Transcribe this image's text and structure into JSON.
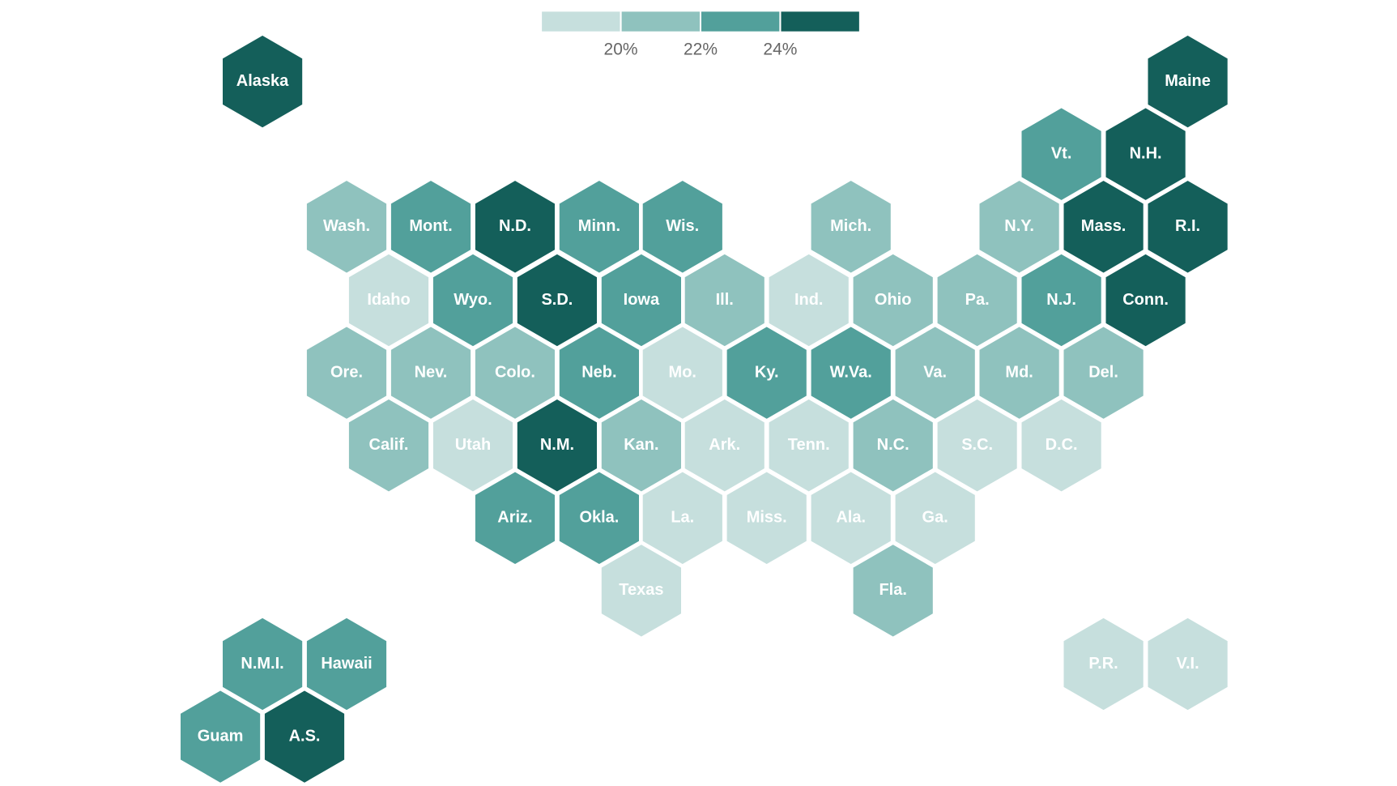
{
  "chart_data": {
    "type": "hexmap",
    "legend": {
      "colors": [
        "#c6dfdd",
        "#8fc2be",
        "#52a09b",
        "#145f5a"
      ],
      "ticks": [
        {
          "value": 20,
          "label": "20%"
        },
        {
          "value": 22,
          "label": "22%"
        },
        {
          "value": 24,
          "label": "24%"
        }
      ]
    },
    "states": [
      {
        "label": "Alaska",
        "color": "#145f5a"
      },
      {
        "label": "Maine",
        "color": "#145f5a"
      },
      {
        "label": "Vt.",
        "color": "#52a09b"
      },
      {
        "label": "N.H.",
        "color": "#145f5a"
      },
      {
        "label": "Wash.",
        "color": "#8fc2be"
      },
      {
        "label": "Mont.",
        "color": "#52a09b"
      },
      {
        "label": "N.D.",
        "color": "#145f5a"
      },
      {
        "label": "Minn.",
        "color": "#52a09b"
      },
      {
        "label": "Wis.",
        "color": "#52a09b"
      },
      {
        "label": "Mich.",
        "color": "#8fc2be"
      },
      {
        "label": "N.Y.",
        "color": "#8fc2be"
      },
      {
        "label": "Mass.",
        "color": "#145f5a"
      },
      {
        "label": "R.I.",
        "color": "#145f5a"
      },
      {
        "label": "Idaho",
        "color": "#c6dfdd"
      },
      {
        "label": "Wyo.",
        "color": "#52a09b"
      },
      {
        "label": "S.D.",
        "color": "#145f5a"
      },
      {
        "label": "Iowa",
        "color": "#52a09b"
      },
      {
        "label": "Ill.",
        "color": "#8fc2be"
      },
      {
        "label": "Ind.",
        "color": "#c6dfdd"
      },
      {
        "label": "Ohio",
        "color": "#8fc2be"
      },
      {
        "label": "Pa.",
        "color": "#8fc2be"
      },
      {
        "label": "N.J.",
        "color": "#52a09b"
      },
      {
        "label": "Conn.",
        "color": "#145f5a"
      },
      {
        "label": "Ore.",
        "color": "#8fc2be"
      },
      {
        "label": "Nev.",
        "color": "#8fc2be"
      },
      {
        "label": "Colo.",
        "color": "#8fc2be"
      },
      {
        "label": "Neb.",
        "color": "#52a09b"
      },
      {
        "label": "Mo.",
        "color": "#c6dfdd"
      },
      {
        "label": "Ky.",
        "color": "#52a09b"
      },
      {
        "label": "W.Va.",
        "color": "#52a09b"
      },
      {
        "label": "Va.",
        "color": "#8fc2be"
      },
      {
        "label": "Md.",
        "color": "#8fc2be"
      },
      {
        "label": "Del.",
        "color": "#8fc2be"
      },
      {
        "label": "Calif.",
        "color": "#8fc2be"
      },
      {
        "label": "Utah",
        "color": "#c6dfdd"
      },
      {
        "label": "N.M.",
        "color": "#145f5a"
      },
      {
        "label": "Kan.",
        "color": "#8fc2be"
      },
      {
        "label": "Ark.",
        "color": "#c6dfdd"
      },
      {
        "label": "Tenn.",
        "color": "#c6dfdd"
      },
      {
        "label": "N.C.",
        "color": "#8fc2be"
      },
      {
        "label": "S.C.",
        "color": "#c6dfdd"
      },
      {
        "label": "D.C.",
        "color": "#c6dfdd"
      },
      {
        "label": "Ariz.",
        "color": "#52a09b"
      },
      {
        "label": "Okla.",
        "color": "#52a09b"
      },
      {
        "label": "La.",
        "color": "#c6dfdd"
      },
      {
        "label": "Miss.",
        "color": "#c6dfdd"
      },
      {
        "label": "Ala.",
        "color": "#c6dfdd"
      },
      {
        "label": "Ga.",
        "color": "#c6dfdd"
      },
      {
        "label": "Texas",
        "color": "#c6dfdd"
      },
      {
        "label": "Fla.",
        "color": "#8fc2be"
      },
      {
        "label": "N.M.I.",
        "color": "#52a09b"
      },
      {
        "label": "Hawaii",
        "color": "#52a09b"
      },
      {
        "label": "P.R.",
        "color": "#c6dfdd"
      },
      {
        "label": "V.I.",
        "color": "#c6dfdd"
      },
      {
        "label": "Guam",
        "color": "#52a09b"
      },
      {
        "label": "A.S.",
        "color": "#145f5a"
      }
    ]
  }
}
